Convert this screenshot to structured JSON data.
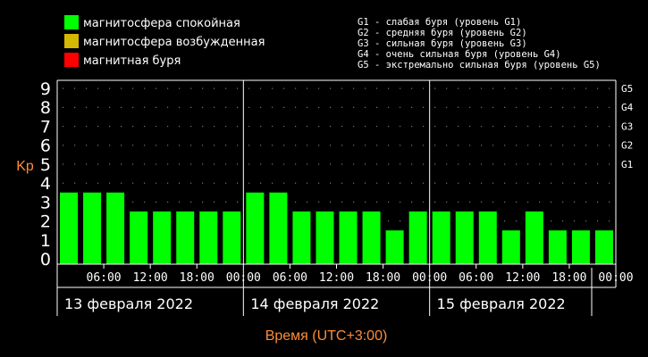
{
  "legend": [
    {
      "label": "магнитосфера спокойная",
      "color": "#00ff00"
    },
    {
      "label": "магнитосфера возбужденная",
      "color": "#d4b900"
    },
    {
      "label": "магнитная буря",
      "color": "#ff0000"
    }
  ],
  "storm_scale": [
    "G1 - слабая буря (уровень G1)",
    "G2 - средняя буря (уровень G2)",
    "G3 - сильная буря (уровень G3)",
    "G4 - очень сильная буря (уровень G4)",
    "G5 - экстремально сильная буря (уровень G5)"
  ],
  "colors": {
    "background": "#000000",
    "bar_quiet": "#00ff00",
    "axis_title": "#ff8c3a",
    "grid_dots": "#777777"
  },
  "chart_data": {
    "type": "bar",
    "ylabel": "Kp",
    "xlabel": "Время (UTC+3:00)",
    "ylim": [
      0,
      9
    ],
    "yticks": [
      0,
      1,
      2,
      3,
      4,
      5,
      6,
      7,
      8,
      9
    ],
    "g_levels": [
      {
        "label": "G1",
        "kp": 5
      },
      {
        "label": "G2",
        "kp": 6
      },
      {
        "label": "G3",
        "kp": 7
      },
      {
        "label": "G4",
        "kp": 8
      },
      {
        "label": "G5",
        "kp": 9
      }
    ],
    "days": [
      "13 февраля 2022",
      "14 февраля 2022",
      "15 февраля 2022"
    ],
    "time_labels": [
      "06:00",
      "12:00",
      "18:00",
      "00:00",
      "06:00",
      "12:00",
      "18:00",
      "00:00",
      "06:00",
      "12:00",
      "18:00",
      "00:00"
    ],
    "values": [
      3,
      3,
      3,
      2,
      2,
      2,
      2,
      2,
      3,
      3,
      2,
      2,
      2,
      2,
      1,
      2,
      2,
      2,
      2,
      1,
      2,
      1,
      1,
      1
    ]
  }
}
